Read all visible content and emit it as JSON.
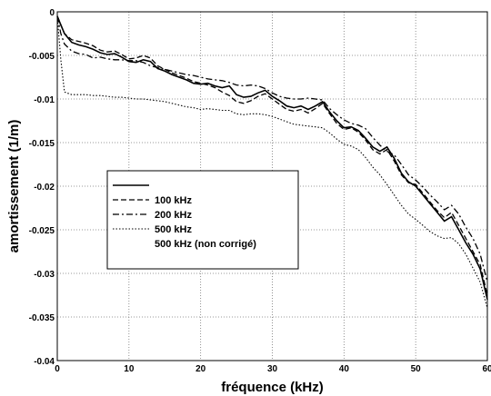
{
  "chart_data": {
    "type": "line",
    "xlabel": "fréquence (kHz)",
    "ylabel": "amortissement (1/m)",
    "xlim": [
      0,
      60
    ],
    "ylim": [
      -0.04,
      0
    ],
    "xticks": [
      0,
      10,
      20,
      30,
      40,
      50,
      60
    ],
    "yticks": [
      0,
      -0.005,
      -0.01,
      -0.015,
      -0.02,
      -0.025,
      -0.03,
      -0.035,
      -0.04
    ],
    "xtick_labels": [
      "0",
      "10",
      "20",
      "30",
      "40",
      "50",
      "60"
    ],
    "ytick_labels": [
      "0",
      "-0.005",
      "-0.01",
      "-0.015",
      "-0.02",
      "-0.025",
      "-0.03",
      "-0.035",
      "-0.04"
    ],
    "grid": true,
    "legend_position": "center-left",
    "series": [
      {
        "name": "100 kHz",
        "style": "solid",
        "x": [
          0,
          0.5,
          1,
          2,
          3,
          4,
          5,
          6,
          7,
          8,
          9,
          10,
          11,
          12,
          13,
          14,
          15,
          16,
          17,
          18,
          19,
          20,
          21,
          22,
          23,
          24,
          25,
          26,
          27,
          28,
          29,
          30,
          31,
          32,
          33,
          34,
          35,
          36,
          37,
          38,
          39,
          40,
          41,
          42,
          43,
          44,
          45,
          46,
          47,
          48,
          49,
          50,
          51,
          52,
          53,
          54,
          55,
          56,
          57,
          58,
          59,
          60
        ],
        "y": [
          -0.0005,
          -0.0015,
          -0.0025,
          -0.0035,
          -0.0038,
          -0.004,
          -0.0043,
          -0.0047,
          -0.0049,
          -0.0048,
          -0.0052,
          -0.0057,
          -0.0058,
          -0.0055,
          -0.0057,
          -0.0065,
          -0.0068,
          -0.0072,
          -0.0075,
          -0.0078,
          -0.0082,
          -0.0083,
          -0.0082,
          -0.0085,
          -0.0087,
          -0.0085,
          -0.0095,
          -0.0098,
          -0.0097,
          -0.0093,
          -0.009,
          -0.0097,
          -0.0102,
          -0.0108,
          -0.011,
          -0.0108,
          -0.0112,
          -0.0108,
          -0.0103,
          -0.0115,
          -0.0125,
          -0.0133,
          -0.0132,
          -0.0136,
          -0.0145,
          -0.0155,
          -0.016,
          -0.0155,
          -0.0168,
          -0.0185,
          -0.0195,
          -0.02,
          -0.021,
          -0.022,
          -0.023,
          -0.024,
          -0.0235,
          -0.025,
          -0.0265,
          -0.0278,
          -0.0295,
          -0.033
        ]
      },
      {
        "name": "200 kHz",
        "style": "dashed",
        "x": [
          0,
          0.5,
          1,
          2,
          3,
          4,
          5,
          6,
          7,
          8,
          9,
          10,
          11,
          12,
          13,
          14,
          15,
          16,
          17,
          18,
          19,
          20,
          21,
          22,
          23,
          24,
          25,
          26,
          27,
          28,
          29,
          30,
          31,
          32,
          33,
          34,
          35,
          36,
          37,
          38,
          39,
          40,
          41,
          42,
          43,
          44,
          45,
          46,
          47,
          48,
          49,
          50,
          51,
          52,
          53,
          54,
          55,
          56,
          57,
          58,
          59,
          60
        ],
        "y": [
          -0.0005,
          -0.0015,
          -0.0025,
          -0.0032,
          -0.0034,
          -0.0036,
          -0.0039,
          -0.0044,
          -0.0046,
          -0.0045,
          -0.0049,
          -0.0054,
          -0.0053,
          -0.005,
          -0.0053,
          -0.0062,
          -0.0066,
          -0.007,
          -0.0073,
          -0.0076,
          -0.008,
          -0.0082,
          -0.0084,
          -0.0087,
          -0.0092,
          -0.0096,
          -0.0103,
          -0.0105,
          -0.0102,
          -0.0097,
          -0.0094,
          -0.01,
          -0.0106,
          -0.0112,
          -0.0114,
          -0.0112,
          -0.0116,
          -0.0111,
          -0.0105,
          -0.0117,
          -0.0128,
          -0.0135,
          -0.0133,
          -0.0138,
          -0.0147,
          -0.0158,
          -0.0163,
          -0.0158,
          -0.0171,
          -0.0187,
          -0.0196,
          -0.0198,
          -0.0208,
          -0.0218,
          -0.0228,
          -0.0236,
          -0.023,
          -0.0245,
          -0.026,
          -0.0275,
          -0.029,
          -0.0325
        ]
      },
      {
        "name": "500 kHz",
        "style": "dashdot",
        "x": [
          0,
          0.5,
          1,
          2,
          3,
          4,
          5,
          6,
          7,
          8,
          9,
          10,
          11,
          12,
          13,
          14,
          15,
          16,
          17,
          18,
          19,
          20,
          21,
          22,
          23,
          24,
          25,
          26,
          27,
          28,
          29,
          30,
          31,
          32,
          33,
          34,
          35,
          36,
          37,
          38,
          39,
          40,
          41,
          42,
          43,
          44,
          45,
          46,
          47,
          48,
          49,
          50,
          51,
          52,
          53,
          54,
          55,
          56,
          57,
          58,
          59,
          60
        ],
        "y": [
          -0.0005,
          -0.0025,
          -0.0037,
          -0.0045,
          -0.0048,
          -0.0049,
          -0.0053,
          -0.0052,
          -0.0054,
          -0.0055,
          -0.0055,
          -0.0056,
          -0.0056,
          -0.0058,
          -0.0062,
          -0.0064,
          -0.0066,
          -0.0068,
          -0.007,
          -0.0072,
          -0.0073,
          -0.0075,
          -0.0077,
          -0.0078,
          -0.0079,
          -0.0081,
          -0.0084,
          -0.0085,
          -0.0084,
          -0.0085,
          -0.0088,
          -0.0093,
          -0.0097,
          -0.0099,
          -0.01,
          -0.01,
          -0.0099,
          -0.01,
          -0.0101,
          -0.0111,
          -0.0118,
          -0.0124,
          -0.0128,
          -0.013,
          -0.0134,
          -0.0144,
          -0.0153,
          -0.016,
          -0.0164,
          -0.0175,
          -0.0187,
          -0.0193,
          -0.0201,
          -0.021,
          -0.0218,
          -0.0227,
          -0.0222,
          -0.0232,
          -0.0247,
          -0.026,
          -0.0278,
          -0.031
        ]
      },
      {
        "name": "500 kHz (non corrigé)",
        "style": "dotted",
        "x": [
          0,
          0.5,
          1,
          2,
          3,
          4,
          5,
          6,
          7,
          8,
          9,
          10,
          11,
          12,
          13,
          14,
          15,
          16,
          17,
          18,
          19,
          20,
          21,
          22,
          23,
          24,
          25,
          26,
          27,
          28,
          29,
          30,
          31,
          32,
          33,
          34,
          35,
          36,
          37,
          38,
          39,
          40,
          41,
          42,
          43,
          44,
          45,
          46,
          47,
          48,
          49,
          50,
          51,
          52,
          53,
          54,
          55,
          56,
          57,
          58,
          59,
          60
        ],
        "y": [
          -0.0005,
          -0.0055,
          -0.0092,
          -0.0095,
          -0.0095,
          -0.0095,
          -0.0096,
          -0.0096,
          -0.0097,
          -0.0098,
          -0.0098,
          -0.0099,
          -0.01,
          -0.01,
          -0.0101,
          -0.0102,
          -0.0103,
          -0.0105,
          -0.0107,
          -0.0109,
          -0.011,
          -0.0112,
          -0.0111,
          -0.0112,
          -0.0113,
          -0.0113,
          -0.0117,
          -0.0118,
          -0.0117,
          -0.0117,
          -0.0118,
          -0.012,
          -0.0123,
          -0.0126,
          -0.0129,
          -0.013,
          -0.0131,
          -0.0132,
          -0.0133,
          -0.0139,
          -0.0146,
          -0.0152,
          -0.0154,
          -0.0158,
          -0.0167,
          -0.0178,
          -0.0187,
          -0.0198,
          -0.021,
          -0.0222,
          -0.0232,
          -0.0238,
          -0.0245,
          -0.0252,
          -0.0257,
          -0.026,
          -0.0259,
          -0.0266,
          -0.0278,
          -0.0294,
          -0.031,
          -0.034
        ]
      }
    ]
  }
}
